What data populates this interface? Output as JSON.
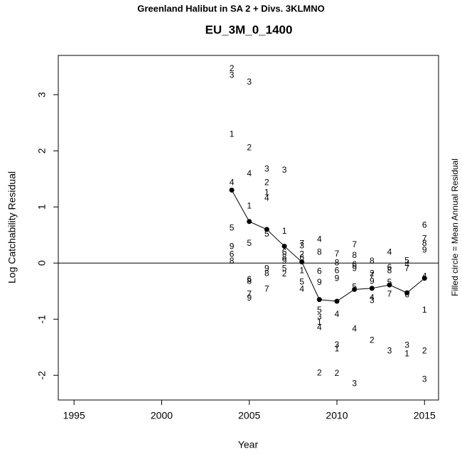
{
  "chart_data": {
    "type": "scatter",
    "title": "Greenland Halibut in SA 2 + Divs. 3KLMNO",
    "subtitle": "EU_3M_0_1400",
    "x_label": "Year",
    "y_label": "Log Catchability Residual",
    "right_note": "Filled circle = Mean Annual Residual",
    "xlim": [
      1994.1,
      2015.8
    ],
    "ylim": [
      -2.44,
      3.7
    ],
    "xticks": [
      1995,
      2000,
      2005,
      2010,
      2015
    ],
    "yticks": [
      -2,
      -1,
      0,
      1,
      2,
      3
    ],
    "reference_line": 0,
    "mean": {
      "x": [
        2004,
        2005,
        2006,
        2007,
        2008,
        2009,
        2010,
        2011,
        2012,
        2013,
        2014,
        2015
      ],
      "values": [
        1.3,
        0.74,
        0.6,
        0.3,
        0.02,
        -0.65,
        -0.68,
        -0.47,
        -0.45,
        -0.39,
        -0.53,
        -0.27
      ]
    },
    "points": [
      {
        "x": 2004,
        "y": 3.46,
        "label": "2"
      },
      {
        "x": 2004,
        "y": 3.34,
        "label": "3"
      },
      {
        "x": 2004,
        "y": 2.29,
        "label": "1"
      },
      {
        "x": 2004,
        "y": 1.43,
        "label": "4"
      },
      {
        "x": 2004,
        "y": 0.62,
        "label": "5"
      },
      {
        "x": 2004,
        "y": 0.29,
        "label": "9"
      },
      {
        "x": 2004,
        "y": 0.15,
        "label": "6"
      },
      {
        "x": 2004,
        "y": 0.03,
        "label": "8"
      },
      {
        "x": 2005,
        "y": 3.22,
        "label": "3"
      },
      {
        "x": 2005,
        "y": 2.05,
        "label": "2"
      },
      {
        "x": 2005,
        "y": 1.59,
        "label": "4"
      },
      {
        "x": 2005,
        "y": 1.01,
        "label": "1"
      },
      {
        "x": 2005,
        "y": 0.35,
        "label": "5"
      },
      {
        "x": 2005,
        "y": -0.3,
        "label": "6"
      },
      {
        "x": 2005,
        "y": -0.33,
        "label": "8"
      },
      {
        "x": 2005,
        "y": -0.56,
        "label": "7"
      },
      {
        "x": 2005,
        "y": -0.63,
        "label": "9"
      },
      {
        "x": 2006,
        "y": 1.67,
        "label": "3"
      },
      {
        "x": 2006,
        "y": 1.43,
        "label": "2"
      },
      {
        "x": 2006,
        "y": 1.25,
        "label": "1"
      },
      {
        "x": 2006,
        "y": 1.15,
        "label": "4"
      },
      {
        "x": 2006,
        "y": 0.51,
        "label": "5"
      },
      {
        "x": 2006,
        "y": -0.1,
        "label": "9"
      },
      {
        "x": 2006,
        "y": -0.19,
        "label": "8"
      },
      {
        "x": 2006,
        "y": -0.47,
        "label": "7"
      },
      {
        "x": 2007,
        "y": 1.65,
        "label": "3"
      },
      {
        "x": 2007,
        "y": 0.56,
        "label": "1"
      },
      {
        "x": 2007,
        "y": 0.19,
        "label": "6"
      },
      {
        "x": 2007,
        "y": 0.1,
        "label": "8"
      },
      {
        "x": 2007,
        "y": 0.03,
        "label": "9"
      },
      {
        "x": 2007,
        "y": -0.1,
        "label": "5"
      },
      {
        "x": 2007,
        "y": -0.2,
        "label": "2"
      },
      {
        "x": 2008,
        "y": 0.34,
        "label": "7"
      },
      {
        "x": 2008,
        "y": 0.3,
        "label": "3"
      },
      {
        "x": 2008,
        "y": 0.15,
        "label": "2"
      },
      {
        "x": 2008,
        "y": 0.09,
        "label": "6"
      },
      {
        "x": 2008,
        "y": -0.14,
        "label": "1"
      },
      {
        "x": 2008,
        "y": -0.34,
        "label": "5"
      },
      {
        "x": 2008,
        "y": -0.47,
        "label": "4"
      },
      {
        "x": 2009,
        "y": 0.42,
        "label": "4"
      },
      {
        "x": 2009,
        "y": 0.19,
        "label": "8"
      },
      {
        "x": 2009,
        "y": -0.15,
        "label": "6"
      },
      {
        "x": 2009,
        "y": -0.35,
        "label": "9"
      },
      {
        "x": 2009,
        "y": -0.84,
        "label": "5"
      },
      {
        "x": 2009,
        "y": -0.96,
        "label": "3"
      },
      {
        "x": 2009,
        "y": -1.06,
        "label": "1"
      },
      {
        "x": 2009,
        "y": -1.15,
        "label": "4"
      },
      {
        "x": 2009,
        "y": -1.96,
        "label": "2"
      },
      {
        "x": 2010,
        "y": 0.16,
        "label": "7"
      },
      {
        "x": 2010,
        "y": 0.0,
        "label": "8"
      },
      {
        "x": 2010,
        "y": -0.14,
        "label": "6"
      },
      {
        "x": 2010,
        "y": -0.28,
        "label": "9"
      },
      {
        "x": 2010,
        "y": -0.92,
        "label": "4"
      },
      {
        "x": 2010,
        "y": -1.46,
        "label": "3"
      },
      {
        "x": 2010,
        "y": -1.53,
        "label": "1"
      },
      {
        "x": 2010,
        "y": -1.97,
        "label": "2"
      },
      {
        "x": 2011,
        "y": 0.32,
        "label": "7"
      },
      {
        "x": 2011,
        "y": 0.13,
        "label": "8"
      },
      {
        "x": 2011,
        "y": -0.03,
        "label": "6"
      },
      {
        "x": 2011,
        "y": -0.1,
        "label": "9"
      },
      {
        "x": 2011,
        "y": -0.43,
        "label": "5"
      },
      {
        "x": 2011,
        "y": -1.18,
        "label": "4"
      },
      {
        "x": 2011,
        "y": -2.15,
        "label": "3"
      },
      {
        "x": 2012,
        "y": 0.03,
        "label": "8"
      },
      {
        "x": 2012,
        "y": -0.19,
        "label": "2"
      },
      {
        "x": 2012,
        "y": -0.23,
        "label": "7"
      },
      {
        "x": 2012,
        "y": -0.33,
        "label": "9"
      },
      {
        "x": 2012,
        "y": -0.62,
        "label": "4"
      },
      {
        "x": 2012,
        "y": -0.67,
        "label": "3"
      },
      {
        "x": 2012,
        "y": -1.38,
        "label": "2"
      },
      {
        "x": 2013,
        "y": 0.19,
        "label": "4"
      },
      {
        "x": 2013,
        "y": -0.08,
        "label": "6"
      },
      {
        "x": 2013,
        "y": -0.14,
        "label": "8"
      },
      {
        "x": 2013,
        "y": -0.35,
        "label": "5"
      },
      {
        "x": 2013,
        "y": -0.56,
        "label": "7"
      },
      {
        "x": 2013,
        "y": -1.57,
        "label": "3"
      },
      {
        "x": 2014,
        "y": 0.04,
        "label": "5"
      },
      {
        "x": 2014,
        "y": -0.03,
        "label": "4"
      },
      {
        "x": 2014,
        "y": -0.1,
        "label": "7"
      },
      {
        "x": 2014,
        "y": -0.57,
        "label": "6"
      },
      {
        "x": 2014,
        "y": -1.47,
        "label": "3"
      },
      {
        "x": 2014,
        "y": -1.62,
        "label": "1"
      },
      {
        "x": 2015,
        "y": 0.67,
        "label": "6"
      },
      {
        "x": 2015,
        "y": 0.43,
        "label": "7"
      },
      {
        "x": 2015,
        "y": 0.35,
        "label": "8"
      },
      {
        "x": 2015,
        "y": 0.23,
        "label": "9"
      },
      {
        "x": 2015,
        "y": -0.24,
        "label": "4"
      },
      {
        "x": 2015,
        "y": -0.84,
        "label": "1"
      },
      {
        "x": 2015,
        "y": -1.57,
        "label": "2"
      },
      {
        "x": 2015,
        "y": -2.08,
        "label": "3"
      }
    ]
  }
}
